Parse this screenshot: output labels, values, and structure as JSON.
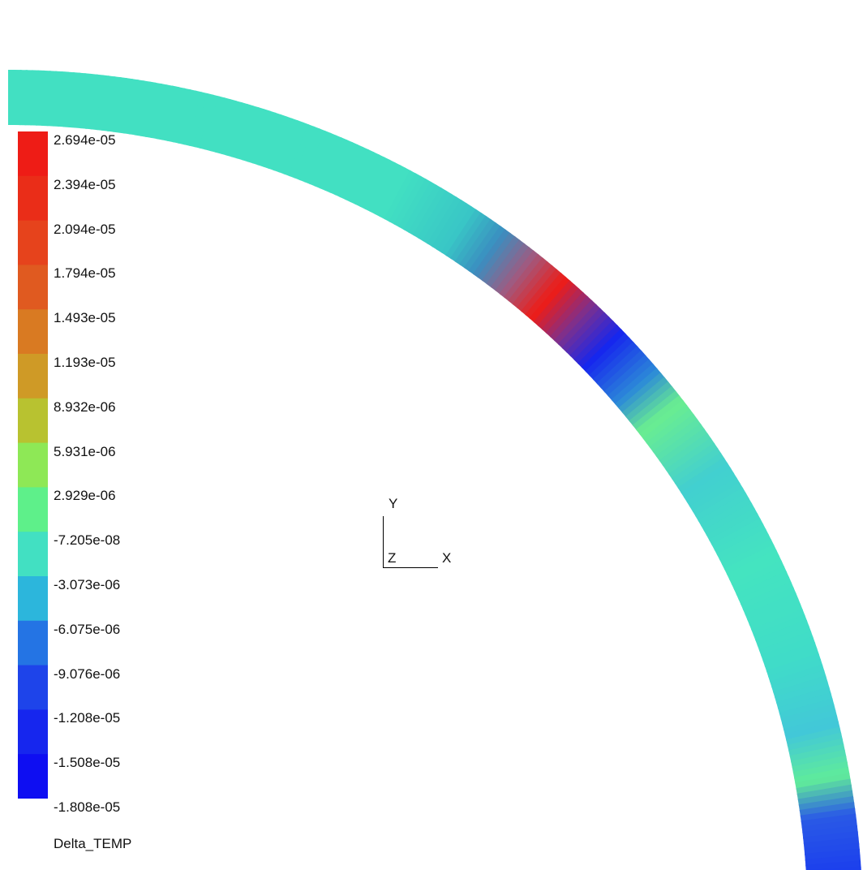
{
  "legend": {
    "title": "Delta_TEMP",
    "labels": [
      "2.694e-05",
      "2.394e-05",
      "2.094e-05",
      "1.794e-05",
      "1.493e-05",
      "1.193e-05",
      "8.932e-06",
      "5.931e-06",
      "2.929e-06",
      "-7.205e-08",
      "-3.073e-06",
      "-6.075e-06",
      "-9.076e-06",
      "-1.208e-05",
      "-1.508e-05",
      "-1.808e-05"
    ],
    "band_colors": [
      "#ee1c16",
      "#ea2d18",
      "#e6431c",
      "#e05a20",
      "#d97a22",
      "#cf9a26",
      "#b8c230",
      "#8ee856",
      "#5ef08a",
      "#42e0c2",
      "#2cb6dc",
      "#2474e4",
      "#1e44ea",
      "#1626ee",
      "#0e0ef2"
    ]
  },
  "triad": {
    "y_label": "Y",
    "z_label": "Z",
    "x_label": "X"
  },
  "ring": {
    "base_color": "#42e0c2",
    "stops": [
      {
        "offset": 0.0,
        "color": "#42e0c2"
      },
      {
        "offset": 0.32,
        "color": "#42e0c2"
      },
      {
        "offset": 0.38,
        "color": "#39c6c6"
      },
      {
        "offset": 0.41,
        "color": "#3a8ec0"
      },
      {
        "offset": 0.44,
        "color": "#a05a80"
      },
      {
        "offset": 0.47,
        "color": "#ee1c16"
      },
      {
        "offset": 0.5,
        "color": "#7a3090"
      },
      {
        "offset": 0.53,
        "color": "#1626ee"
      },
      {
        "offset": 0.57,
        "color": "#2c8ad8"
      },
      {
        "offset": 0.6,
        "color": "#6aee90"
      },
      {
        "offset": 0.66,
        "color": "#42cfd0"
      },
      {
        "offset": 0.74,
        "color": "#44e4c0"
      },
      {
        "offset": 0.82,
        "color": "#40dcc8"
      },
      {
        "offset": 0.88,
        "color": "#42c8d8"
      },
      {
        "offset": 0.92,
        "color": "#60ec9a"
      },
      {
        "offset": 0.95,
        "color": "#2a5ae6"
      },
      {
        "offset": 1.0,
        "color": "#1a3cee"
      }
    ]
  }
}
